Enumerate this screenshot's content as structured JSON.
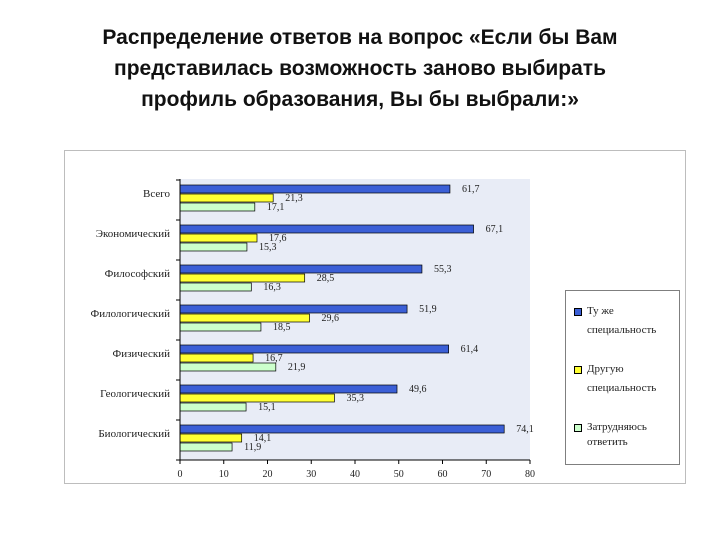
{
  "title_lines": [
    "Распределение ответов на вопрос «Если бы Вам",
    "представилась возможность заново выбирать",
    "профиль образования, Вы бы выбрали:»"
  ],
  "chart_data": {
    "type": "bar",
    "orientation": "horizontal",
    "categories": [
      "Всего",
      "Экономический",
      "Философский",
      "Филологический",
      "Физический",
      "Геологический",
      "Биологический"
    ],
    "series": [
      {
        "name": "Ту же специальность",
        "values": [
          61.7,
          67.1,
          55.3,
          51.9,
          61.4,
          49.6,
          74.1
        ],
        "labels": [
          "61,7",
          "67,1",
          "55,3",
          "51,9",
          "61,4",
          "49,6",
          "74,1"
        ],
        "color": "#3b5fd6"
      },
      {
        "name": "Другую специальность",
        "values": [
          21.3,
          17.6,
          28.5,
          29.6,
          16.7,
          35.3,
          14.1
        ],
        "labels": [
          "21,3",
          "17,6",
          "28,5",
          "29,6",
          "16,7",
          "35,3",
          "14,1"
        ],
        "color": "#ffff33"
      },
      {
        "name": "Затрудняюсь ответить",
        "values": [
          17.1,
          15.3,
          16.3,
          18.5,
          21.9,
          15.1,
          11.9
        ],
        "labels": [
          "17,1",
          "15,3",
          "16,3",
          "18,5",
          "21,9",
          "15,1",
          "11,9"
        ],
        "color": "#ccffcc"
      }
    ],
    "legend_lines": [
      [
        "Ту же",
        "специальность"
      ],
      [
        "Другую",
        "специальность"
      ],
      [
        "Затрудняюсь",
        "ответить"
      ]
    ],
    "xlim": [
      0,
      80
    ],
    "xticks": [
      0,
      10,
      20,
      30,
      40,
      50,
      60,
      70,
      80
    ],
    "grid": false,
    "legend_position": "right",
    "plot_background": "#e8ecf6"
  }
}
